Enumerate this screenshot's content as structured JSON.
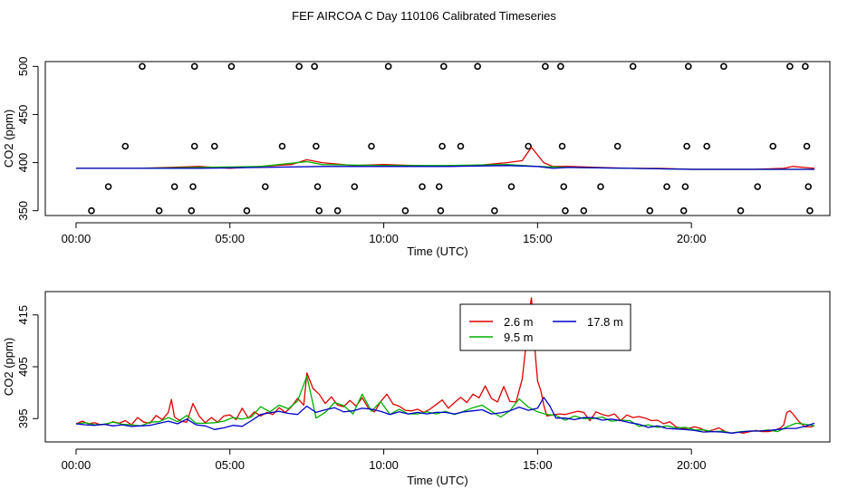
{
  "colors": {
    "s1": "#dd0000",
    "s2": "#00b000",
    "s3": "#0000cc",
    "axis": "#000000"
  },
  "chart_data": [
    {
      "type": "scatter+line",
      "title": "FEF AIRCOA C  Day 110106  Calibrated Timeseries",
      "xlabel": "Time (UTC)",
      "ylabel": "CO2 (ppm)",
      "xlim": [
        -1,
        24.5
      ],
      "ylim": [
        345,
        505
      ],
      "xticks": [
        0,
        5,
        10,
        15,
        20
      ],
      "xtick_labels": [
        "00:00",
        "05:00",
        "10:00",
        "15:00",
        "20:00"
      ],
      "yticks": [
        350,
        400,
        450,
        500
      ],
      "ytick_labels": [
        "350",
        "400",
        "450",
        "500"
      ],
      "calibration_points": {
        "name": "calibration",
        "x": [
          0.5,
          1.05,
          1.6,
          2.15,
          2.7,
          3.2,
          3.75,
          3.8,
          3.85,
          3.85,
          4.5,
          5.05,
          5.55,
          6.15,
          6.7,
          7.25,
          7.75,
          7.8,
          7.85,
          7.9,
          8.5,
          9.05,
          9.6,
          10.15,
          10.7,
          11.25,
          11.8,
          11.85,
          11.9,
          11.95,
          12.5,
          13.05,
          13.6,
          14.15,
          14.7,
          15.25,
          15.75,
          15.8,
          15.85,
          15.9,
          16.5,
          17.05,
          17.6,
          18.1,
          18.65,
          19.2,
          19.75,
          19.8,
          19.85,
          19.9,
          20.5,
          21.05,
          21.6,
          22.15,
          22.65,
          23.2,
          23.7,
          23.75,
          23.8,
          23.85
        ],
        "y": [
          350,
          375,
          417,
          500,
          350,
          375,
          350,
          375,
          417,
          500,
          417,
          500,
          350,
          375,
          417,
          500,
          500,
          417,
          375,
          350,
          350,
          375,
          417,
          500,
          350,
          375,
          375,
          350,
          417,
          500,
          417,
          500,
          350,
          375,
          417,
          500,
          500,
          417,
          375,
          350,
          350,
          375,
          417,
          500,
          350,
          375,
          350,
          375,
          417,
          500,
          417,
          500,
          350,
          375,
          417,
          500,
          500,
          417,
          375,
          350
        ]
      },
      "series": [
        {
          "name": "2.6 m",
          "color": "#dd0000",
          "x": [
            0,
            1,
            2,
            3,
            4,
            5,
            6,
            7,
            7.5,
            8,
            9,
            10,
            11,
            12,
            13,
            14,
            14.5,
            14.8,
            15.2,
            15.5,
            16,
            17,
            18,
            19,
            20,
            21,
            22,
            23,
            23.3,
            24
          ],
          "y": [
            394,
            394,
            394,
            395,
            396,
            394,
            396,
            398,
            403,
            400,
            397,
            398,
            397,
            396,
            397,
            400,
            402,
            416,
            400,
            396,
            396,
            395,
            394,
            394,
            393,
            393,
            393,
            394,
            396,
            394
          ]
        },
        {
          "name": "9.5 m",
          "color": "#00b000",
          "x": [
            0,
            2,
            4,
            6,
            7.5,
            8,
            10,
            12,
            14,
            15,
            16,
            18,
            20,
            22,
            24
          ],
          "y": [
            394,
            394,
            395,
            396,
            401,
            398,
            397,
            397,
            398,
            396,
            395,
            394,
            393,
            393,
            393
          ]
        },
        {
          "name": "17.8 m",
          "color": "#0000cc",
          "x": [
            0,
            2,
            4,
            6,
            8,
            10,
            12,
            14,
            15,
            15.5,
            16,
            18,
            20,
            22,
            24
          ],
          "y": [
            394,
            394,
            394,
            395,
            396,
            396,
            396,
            397,
            396,
            394,
            395,
            394,
            393,
            393,
            393
          ]
        }
      ]
    },
    {
      "type": "line",
      "xlabel": "Time (UTC)",
      "ylabel": "CO2 (ppm)",
      "xlim": [
        -1,
        24.5
      ],
      "ylim": [
        390.5,
        419.5
      ],
      "xticks": [
        0,
        5,
        10,
        15,
        20
      ],
      "xtick_labels": [
        "00:00",
        "05:00",
        "10:00",
        "15:00",
        "20:00"
      ],
      "yticks": [
        395,
        405,
        415
      ],
      "ytick_labels": [
        "395",
        "405",
        "415"
      ],
      "legend": {
        "position": "top-center",
        "entries": [
          "2.6 m",
          "17.8 m",
          "9.5 m"
        ]
      },
      "series": [
        {
          "name": "2.6 m",
          "color": "#dd0000",
          "x": [
            0.0,
            0.2,
            0.4,
            0.6,
            0.8,
            1.0,
            1.2,
            1.4,
            1.6,
            1.8,
            2.0,
            2.2,
            2.4,
            2.6,
            2.8,
            3.0,
            3.1,
            3.2,
            3.4,
            3.6,
            3.8,
            4.0,
            4.2,
            4.4,
            4.6,
            4.8,
            5.0,
            5.2,
            5.4,
            5.6,
            5.8,
            6.0,
            6.2,
            6.4,
            6.6,
            6.8,
            7.0,
            7.2,
            7.4,
            7.5,
            7.7,
            7.9,
            8.1,
            8.3,
            8.5,
            8.7,
            8.9,
            9.1,
            9.3,
            9.5,
            9.7,
            9.9,
            10.1,
            10.3,
            10.5,
            10.7,
            10.9,
            11.1,
            11.3,
            11.5,
            11.7,
            11.9,
            12.1,
            12.3,
            12.5,
            12.7,
            12.9,
            13.1,
            13.3,
            13.5,
            13.7,
            13.9,
            14.1,
            14.3,
            14.5,
            14.6,
            14.7,
            14.8,
            14.9,
            15.0,
            15.1,
            15.2,
            15.3,
            15.5,
            15.7,
            15.9,
            16.1,
            16.3,
            16.5,
            16.7,
            16.9,
            17.1,
            17.3,
            17.5,
            17.7,
            17.9,
            18.1,
            18.3,
            18.5,
            18.7,
            18.9,
            19.1,
            19.3,
            19.5,
            19.7,
            19.9,
            20.1,
            20.3,
            20.5,
            20.7,
            20.9,
            21.1,
            21.3,
            21.5,
            21.7,
            21.9,
            22.1,
            22.3,
            22.5,
            22.7,
            22.9,
            23.0,
            23.1,
            23.2,
            23.3,
            23.5,
            23.7,
            23.9,
            24.0
          ],
          "y": [
            394,
            394.5,
            394,
            394.2,
            393.8,
            393.9,
            394.4,
            394.1,
            394.6,
            393.8,
            395.2,
            394.3,
            394.1,
            395.6,
            394.8,
            396.2,
            398.7,
            395.3,
            394.5,
            394.3,
            397.9,
            395.5,
            394.2,
            395.2,
            394.3,
            395.5,
            395.7,
            394.8,
            397,
            395.1,
            396.3,
            395.5,
            396.2,
            395.8,
            397.1,
            396.2,
            397.3,
            398.9,
            397.6,
            403.8,
            400.8,
            399.7,
            397.9,
            399.2,
            397.6,
            397.3,
            398.5,
            397.4,
            399,
            397,
            396.3,
            398.3,
            399.7,
            397.8,
            397.4,
            396.6,
            396.5,
            396.8,
            396.2,
            396.8,
            397.7,
            398.6,
            397,
            398.1,
            399.1,
            398.1,
            399.7,
            399,
            401.3,
            398.9,
            398.2,
            401.2,
            398.3,
            398.2,
            402.6,
            407.9,
            414.5,
            418.3,
            409.1,
            402.2,
            400.5,
            397.6,
            395.5,
            395.7,
            395.9,
            395.8,
            396.1,
            396.4,
            396.2,
            394.6,
            396.3,
            395.8,
            395.5,
            395.9,
            394.6,
            395.7,
            395.2,
            395.4,
            395.1,
            394.6,
            394.7,
            394,
            394.4,
            393.4,
            393.1,
            393.1,
            393.4,
            393.1,
            392.5,
            392.8,
            393.2,
            392.5,
            392.2,
            392.4,
            392.2,
            392.5,
            392.7,
            392.5,
            392.5,
            392.7,
            393.2,
            393.8,
            396.2,
            396.5,
            395.9,
            394.4,
            393.4,
            393.4,
            393.7
          ]
        },
        {
          "name": "9.5 m",
          "color": "#00b000",
          "x": [
            0.0,
            0.3,
            0.6,
            0.9,
            1.2,
            1.5,
            1.8,
            2.1,
            2.4,
            2.7,
            3.0,
            3.3,
            3.6,
            3.9,
            4.2,
            4.5,
            4.8,
            5.1,
            5.4,
            5.7,
            6.0,
            6.3,
            6.6,
            6.9,
            7.2,
            7.5,
            7.8,
            8.1,
            8.4,
            8.7,
            9.0,
            9.3,
            9.6,
            9.9,
            10.2,
            10.5,
            10.8,
            11.1,
            11.4,
            11.7,
            12.0,
            12.3,
            12.6,
            12.9,
            13.2,
            13.5,
            13.8,
            14.1,
            14.4,
            14.7,
            15.0,
            15.3,
            15.6,
            15.9,
            16.2,
            16.5,
            16.8,
            17.1,
            17.4,
            17.7,
            18.0,
            18.3,
            18.6,
            18.9,
            19.2,
            19.5,
            19.8,
            20.1,
            20.4,
            20.7,
            21.0,
            21.3,
            21.6,
            21.9,
            22.2,
            22.5,
            22.8,
            23.1,
            23.4,
            23.7,
            24.0
          ],
          "y": [
            394,
            394.2,
            393.8,
            393.9,
            394.3,
            393.9,
            393.8,
            393.6,
            394.3,
            394.4,
            395.2,
            394.4,
            395.6,
            394.1,
            394.1,
            394.2,
            394.5,
            395.2,
            394.9,
            395.3,
            397.3,
            396.3,
            397.6,
            396.9,
            398.4,
            403.2,
            395.1,
            396.2,
            398.1,
            397.5,
            395.9,
            399.7,
            396.4,
            398.3,
            395.8,
            396.8,
            395.9,
            395.9,
            396.3,
            395.9,
            396.4,
            395.8,
            396.4,
            397.1,
            397.6,
            396.4,
            395.3,
            396.5,
            398.8,
            397.2,
            396.3,
            395.8,
            395.6,
            394.7,
            395.5,
            395,
            395,
            395.3,
            394.5,
            394.7,
            394.6,
            393.5,
            393.8,
            393.3,
            393.6,
            393.2,
            393.3,
            392.8,
            392.8,
            392.5,
            392.6,
            392.2,
            392.5,
            392.6,
            392.6,
            392.8,
            392.5,
            393.4,
            394.1,
            393.9,
            393.6
          ]
        },
        {
          "name": "17.8 m",
          "color": "#0000cc",
          "x": [
            0.0,
            0.3,
            0.6,
            0.9,
            1.2,
            1.5,
            1.8,
            2.1,
            2.4,
            2.7,
            3.0,
            3.3,
            3.6,
            3.9,
            4.2,
            4.5,
            4.8,
            5.1,
            5.4,
            5.7,
            6.0,
            6.3,
            6.6,
            6.9,
            7.2,
            7.5,
            7.8,
            8.1,
            8.4,
            8.7,
            9.0,
            9.3,
            9.6,
            9.9,
            10.2,
            10.5,
            10.8,
            11.1,
            11.4,
            11.7,
            12.0,
            12.3,
            12.6,
            12.9,
            13.2,
            13.5,
            13.8,
            14.1,
            14.4,
            14.7,
            15.0,
            15.2,
            15.4,
            15.6,
            15.9,
            16.2,
            16.5,
            16.8,
            17.1,
            17.4,
            17.7,
            18.0,
            18.3,
            18.6,
            18.9,
            19.2,
            19.5,
            19.8,
            20.1,
            20.4,
            20.7,
            21.0,
            21.3,
            21.6,
            21.9,
            22.2,
            22.5,
            22.8,
            23.1,
            23.4,
            23.7,
            24.0
          ],
          "y": [
            394,
            393.8,
            393.7,
            393.9,
            393.6,
            393.8,
            393.5,
            393.6,
            393.7,
            394.1,
            394.5,
            394,
            394.9,
            393.8,
            393.6,
            392.9,
            393.2,
            393.7,
            393.5,
            394.6,
            395.8,
            396.1,
            396.4,
            396,
            395.8,
            397.4,
            396.2,
            396.7,
            397.1,
            396.3,
            396.5,
            397,
            396.8,
            396.4,
            395.8,
            396.3,
            395.9,
            396.2,
            395.9,
            396.2,
            396.2,
            395.9,
            396.3,
            396.5,
            396.7,
            395.9,
            396.1,
            396.5,
            397.2,
            396.6,
            397,
            399.1,
            397.4,
            395.1,
            395.1,
            394.8,
            395.2,
            395.2,
            394.7,
            394.9,
            394.6,
            394.2,
            393.9,
            393.3,
            393.6,
            393.1,
            393,
            392.9,
            392.7,
            392.4,
            392.5,
            392.4,
            392.2,
            392.4,
            392.6,
            392.6,
            392.7,
            392.9,
            393.1,
            393.1,
            393.5,
            394.1
          ]
        }
      ]
    }
  ]
}
